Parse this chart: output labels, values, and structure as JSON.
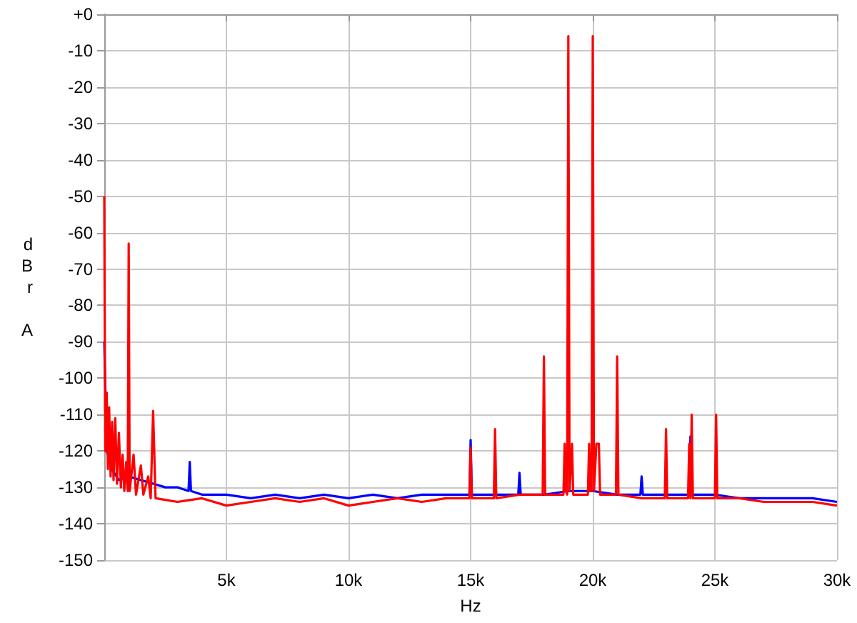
{
  "chart_data": {
    "type": "line",
    "xlabel": "Hz",
    "ylabel": "dBr A",
    "xlim": [
      0,
      30000
    ],
    "ylim": [
      -150,
      0
    ],
    "xticks": [
      {
        "value": 5000,
        "label": "5k"
      },
      {
        "value": 10000,
        "label": "10k"
      },
      {
        "value": 15000,
        "label": "15k"
      },
      {
        "value": 20000,
        "label": "20k"
      },
      {
        "value": 25000,
        "label": "25k"
      },
      {
        "value": 30000,
        "label": "30k"
      }
    ],
    "yticks": [
      {
        "value": 0,
        "label": "+0"
      },
      -10,
      -20,
      -30,
      -40,
      -50,
      -60,
      -70,
      -80,
      -90,
      -100,
      -110,
      -120,
      -130,
      -140,
      -150
    ],
    "grid": true,
    "marker": "none",
    "line_style": "solid",
    "series": [
      {
        "color": "#0000ff",
        "x": [
          0,
          100,
          300,
          600,
          1000,
          1500,
          2000,
          2500,
          3000,
          3450,
          3500,
          3550,
          4000,
          5000,
          6000,
          7000,
          8000,
          9000,
          10000,
          11000,
          12000,
          13000,
          14000,
          14950,
          15000,
          15050,
          16000,
          16950,
          17000,
          17050,
          18000,
          19000,
          20000,
          21000,
          21950,
          22000,
          22050,
          23000,
          23950,
          24000,
          24050,
          25000,
          26000,
          27000,
          28000,
          29000,
          30000
        ],
        "values": [
          -90,
          -120,
          -125,
          -128,
          -127,
          -128,
          -129,
          -130,
          -130,
          -131,
          -123,
          -131,
          -132,
          -132,
          -133,
          -132,
          -133,
          -132,
          -133,
          -132,
          -133,
          -132,
          -132,
          -132,
          -117,
          -132,
          -132,
          -132,
          -126,
          -132,
          -132,
          -131,
          -131,
          -132,
          -132,
          -127,
          -132,
          -132,
          -132,
          -116,
          -132,
          -132,
          -133,
          -133,
          -133,
          -133,
          -134
        ]
      },
      {
        "color": "#ff0000",
        "x": [
          0,
          40,
          100,
          150,
          200,
          260,
          320,
          380,
          450,
          520,
          600,
          680,
          750,
          820,
          900,
          960,
          1000,
          1040,
          1200,
          1300,
          1500,
          1600,
          1800,
          1900,
          2000,
          2100,
          3000,
          4000,
          5000,
          6000,
          7000,
          8000,
          9000,
          10000,
          11000,
          12000,
          13000,
          14000,
          14950,
          15000,
          15050,
          15950,
          16000,
          16050,
          17000,
          17950,
          18000,
          18050,
          18800,
          18850,
          18900,
          18950,
          19000,
          19050,
          19150,
          19200,
          19800,
          19850,
          19900,
          19950,
          20000,
          20050,
          20150,
          20250,
          20300,
          20950,
          21000,
          21050,
          22000,
          22950,
          23000,
          23050,
          23900,
          23950,
          24000,
          24050,
          24100,
          25000,
          25050,
          25100,
          26000,
          27000,
          28000,
          29000,
          30000
        ],
        "values": [
          -50,
          -120,
          -104,
          -125,
          -108,
          -127,
          -112,
          -128,
          -111,
          -129,
          -115,
          -130,
          -121,
          -131,
          -123,
          -131,
          -63,
          -131,
          -121,
          -132,
          -124,
          -132,
          -127,
          -133,
          -109,
          -133,
          -134,
          -133,
          -135,
          -134,
          -133,
          -134,
          -133,
          -135,
          -134,
          -133,
          -134,
          -133,
          -133,
          -119,
          -133,
          -133,
          -114,
          -133,
          -132,
          -132,
          -94,
          -132,
          -132,
          -118,
          -131,
          -132,
          -6,
          -131,
          -118,
          -132,
          -132,
          -118,
          -131,
          -131,
          -6,
          -131,
          -118,
          -118,
          -132,
          -132,
          -94,
          -132,
          -133,
          -133,
          -114,
          -133,
          -133,
          -118,
          -133,
          -110,
          -133,
          -133,
          -110,
          -133,
          -133,
          -134,
          -134,
          -134,
          -135
        ]
      }
    ]
  }
}
